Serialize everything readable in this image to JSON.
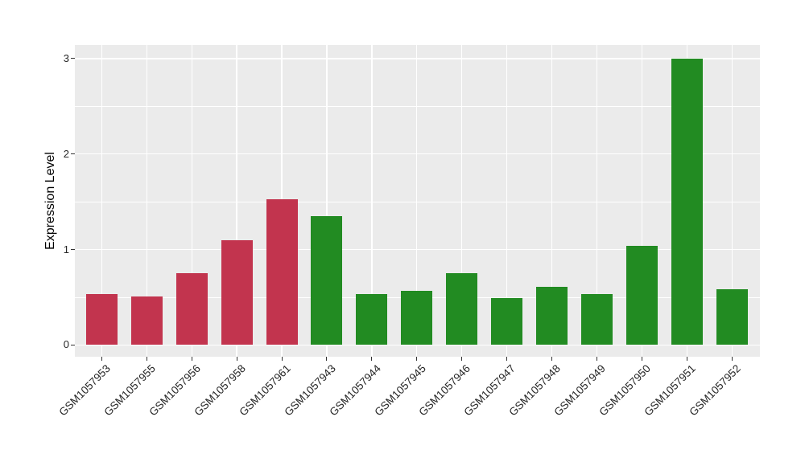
{
  "chart_data": {
    "type": "bar",
    "title": "",
    "xlabel": "",
    "ylabel": "Expression Level",
    "categories": [
      "GSM1057953",
      "GSM1057955",
      "GSM1057956",
      "GSM1057958",
      "GSM1057961",
      "GSM1057943",
      "GSM1057944",
      "GSM1057945",
      "GSM1057946",
      "GSM1057947",
      "GSM1057948",
      "GSM1057949",
      "GSM1057950",
      "GSM1057951",
      "GSM1057952"
    ],
    "values": [
      0.53,
      0.51,
      0.75,
      1.1,
      1.53,
      1.35,
      0.53,
      0.57,
      0.75,
      0.49,
      0.61,
      0.53,
      1.04,
      3.0,
      0.58
    ],
    "bar_colors": [
      "#C2344E",
      "#C2344E",
      "#C2344E",
      "#C2344E",
      "#C2344E",
      "#228B22",
      "#228B22",
      "#228B22",
      "#228B22",
      "#228B22",
      "#228B22",
      "#228B22",
      "#228B22",
      "#228B22",
      "#228B22"
    ],
    "y_ticks": [
      0,
      1,
      2,
      3
    ],
    "y_minor_ticks": [
      0.5,
      1.5,
      2.5
    ],
    "ylim": [
      -0.12,
      3.14
    ],
    "grid": true,
    "legend": false,
    "colors": {
      "panel_bg": "#EBEBEB",
      "grid": "#FFFFFF",
      "tick_text": "#262626",
      "axis_title_text": "#000000",
      "background": "#FFFFFF"
    }
  }
}
